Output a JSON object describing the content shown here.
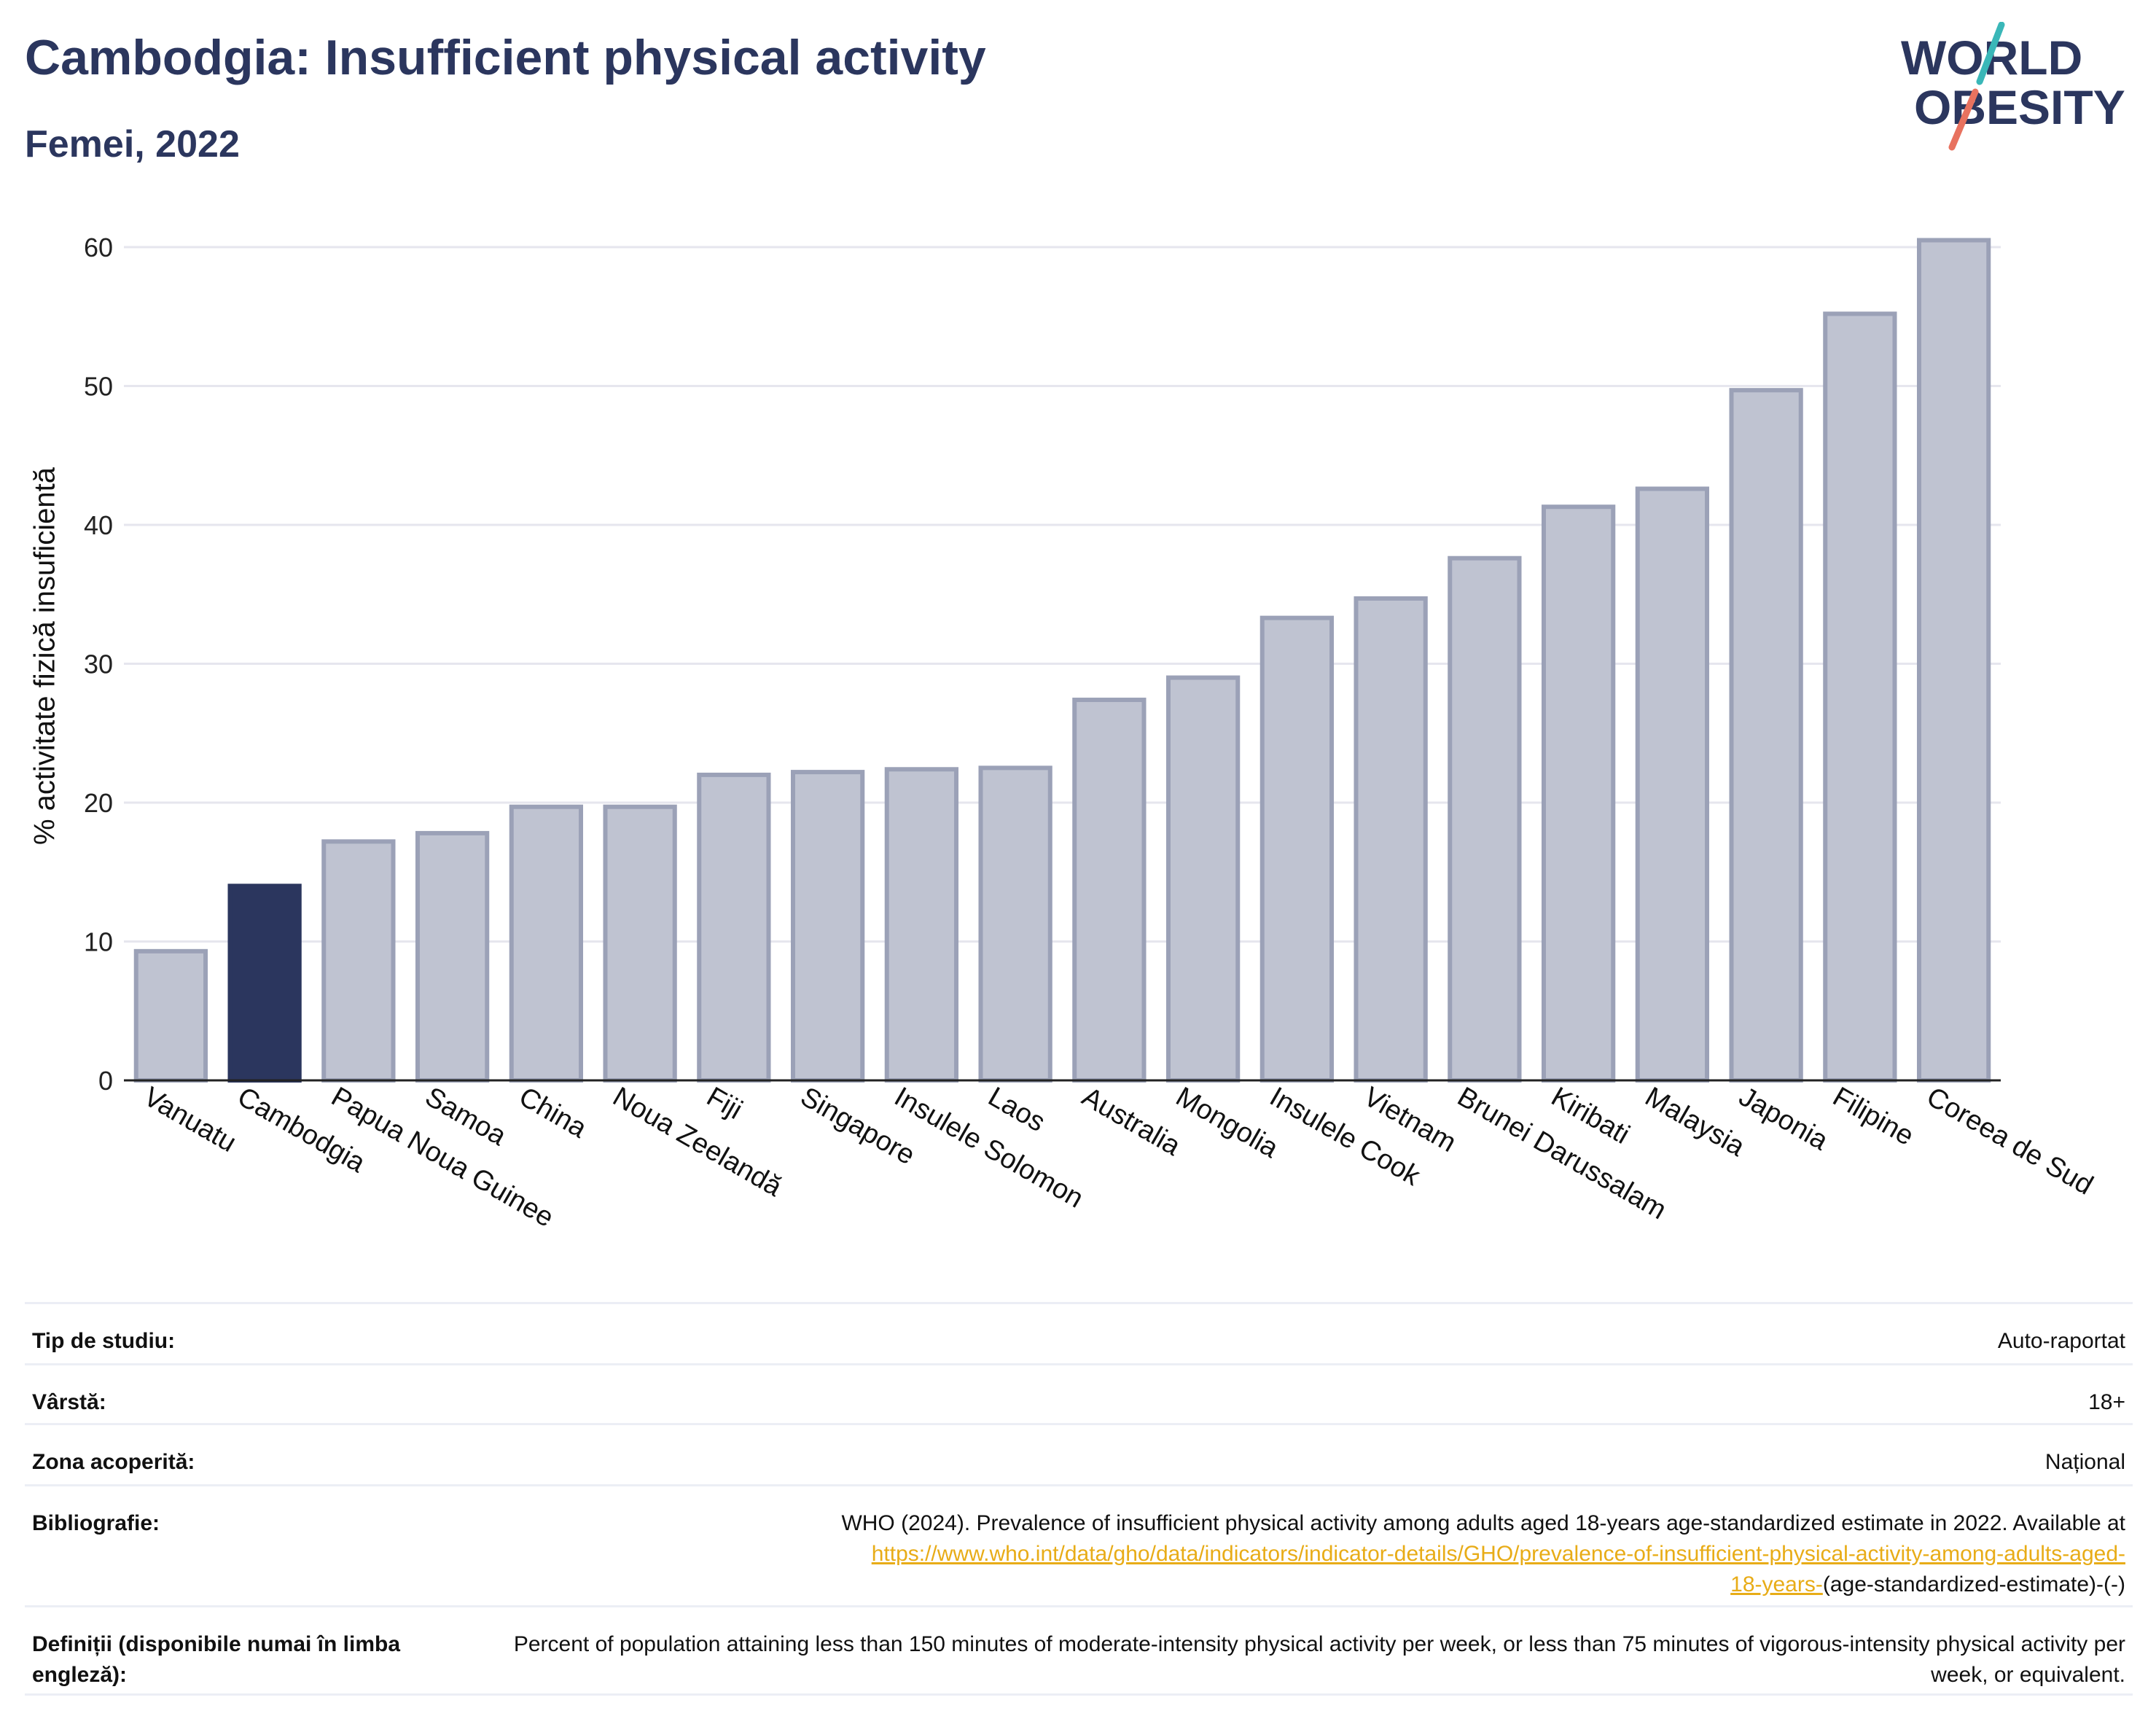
{
  "header": {
    "title": "Cambodgia: Insufficient physical activity",
    "subtitle": "Femei, 2022"
  },
  "logo": {
    "line1": "WORLD",
    "line2": "OBESITY",
    "colors": {
      "text": "#2b365e",
      "slash_teal": "#3ab7b8",
      "slash_coral": "#e8725f"
    }
  },
  "colors": {
    "highlight": "#2b365e",
    "bar_fill": "#bfc3d1",
    "bar_stroke": "#9ba1b7",
    "grid": "#e6e6ee"
  },
  "chart_data": {
    "type": "bar",
    "title": "Cambodgia: Insufficient physical activity",
    "subtitle": "Femei, 2022",
    "ylabel": "% activitate fizică insuficientă",
    "xlabel": "",
    "ylim": [
      0,
      63
    ],
    "yticks": [
      0,
      10,
      20,
      30,
      40,
      50,
      60
    ],
    "grid": true,
    "highlight": "Cambodgia",
    "categories": [
      "Vanuatu",
      "Cambodgia",
      "Papua Noua Guinee",
      "Samoa",
      "China",
      "Noua Zeelandă",
      "Fiji",
      "Singapore",
      "Insulele Solomon",
      "Laos",
      "Australia",
      "Mongolia",
      "Insulele Cook",
      "Vietnam",
      "Brunei Darussalam",
      "Kiribati",
      "Malaysia",
      "Japonia",
      "Filipine",
      "Coreea de Sud"
    ],
    "values": [
      9.3,
      14.0,
      17.2,
      17.8,
      19.7,
      19.7,
      22.0,
      22.2,
      22.4,
      22.5,
      27.4,
      29.0,
      33.3,
      34.7,
      37.6,
      41.3,
      42.6,
      49.7,
      55.2,
      60.5
    ]
  },
  "info": {
    "study_type": {
      "label": "Tip de studiu:",
      "value": "Auto-raportat"
    },
    "age": {
      "label": "Vârstă:",
      "value": "18+"
    },
    "coverage": {
      "label": "Zona acoperită:",
      "value": "Național"
    },
    "bibliography": {
      "label": "Bibliografie:",
      "text": "WHO (2024). Prevalence of insufficient physical activity among adults aged 18-years age-standardized estimate in 2022. Available at",
      "link_line1": "https://www.who.int/data/gho/data/indicators/indicator-details/GHO/prevalence-of-insufficient-physical-activity-among-adults-aged-",
      "link_line2": "18-years-",
      "suffix": "(age-standardized-estimate)-(-)"
    },
    "definitions": {
      "label": "Definiții (disponibile numai în limba engleză):",
      "value": "Percent of population attaining less than 150 minutes of moderate-intensity physical activity per week, or less than 75 minutes of vigorous-intensity physical activity per week, or equivalent."
    }
  }
}
